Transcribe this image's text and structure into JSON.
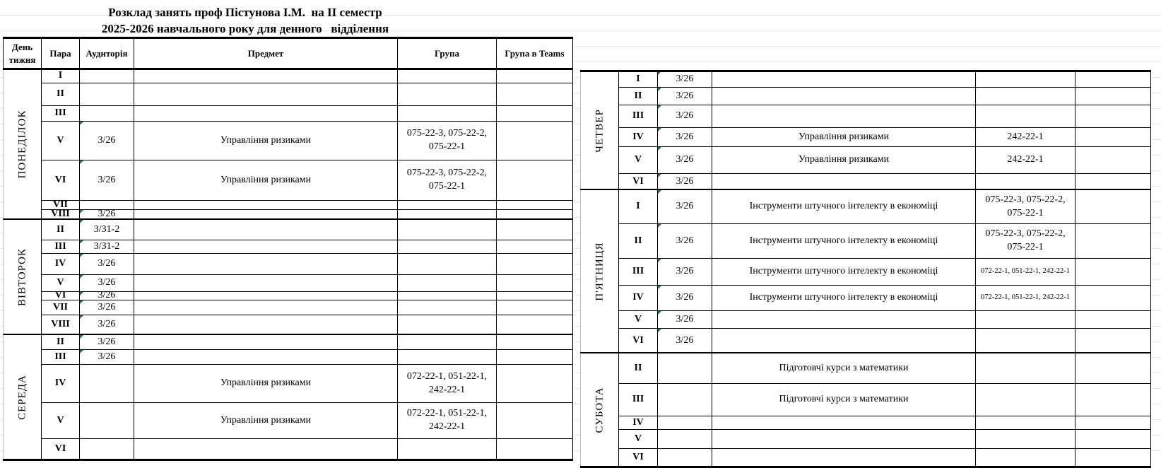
{
  "title_line1": "Розклад занять проф Пістунова І.М.  на ІІ семестр",
  "title_line2": "2025-2026 навчального року для денного   відділення",
  "headers": [
    "День тижня",
    "Пара",
    "Аудиторія",
    "Предмет",
    "Група",
    "Група в Teams"
  ],
  "left_days": [
    {
      "name": "ПОНЕДІЛОК",
      "rows": [
        {
          "para": "I",
          "room": "",
          "subject": "",
          "group": "",
          "teams": ""
        },
        {
          "para": "II",
          "room": "",
          "subject": "",
          "group": "",
          "teams": ""
        },
        {
          "para": "III",
          "room": "",
          "subject": "",
          "group": "",
          "teams": ""
        },
        {
          "para": "V",
          "room": "3/26",
          "subject": "Управління ризиками",
          "group": "075-22-3, 075-22-2, 075-22-1",
          "teams": ""
        },
        {
          "para": "VI",
          "room": "3/26",
          "subject": "Управління ризиками",
          "group": "075-22-3, 075-22-2, 075-22-1",
          "teams": ""
        },
        {
          "para": "VII",
          "room": "",
          "subject": "",
          "group": "",
          "teams": ""
        },
        {
          "para": "VIII",
          "room": "3/26",
          "subject": "",
          "group": "",
          "teams": ""
        }
      ]
    },
    {
      "name": "ВІВТОРОК",
      "rows": [
        {
          "para": "II",
          "room": "3/31-2",
          "subject": "",
          "group": "",
          "teams": ""
        },
        {
          "para": "III",
          "room": "3/31-2",
          "subject": "",
          "group": "",
          "teams": ""
        },
        {
          "para": "IV",
          "room": "3/26",
          "subject": "",
          "group": "",
          "teams": ""
        },
        {
          "para": "V",
          "room": "3/26",
          "subject": "",
          "group": "",
          "teams": ""
        },
        {
          "para": "VI",
          "room": "3/26",
          "subject": "",
          "group": "",
          "teams": ""
        },
        {
          "para": "VII",
          "room": "3/26",
          "subject": "",
          "group": "",
          "teams": ""
        },
        {
          "para": "VIII",
          "room": "3/26",
          "subject": "",
          "group": "",
          "teams": ""
        }
      ]
    },
    {
      "name": "СЕРЕДА",
      "rows": [
        {
          "para": "II",
          "room": "3/26",
          "subject": "",
          "group": "",
          "teams": ""
        },
        {
          "para": "III",
          "room": "3/26",
          "subject": "",
          "group": "",
          "teams": ""
        },
        {
          "para": "IV",
          "room": "",
          "subject": "Управління ризиками",
          "group": "072-22-1, 051-22-1, 242-22-1",
          "teams": ""
        },
        {
          "para": "V",
          "room": "",
          "subject": "Управління ризиками",
          "group": "072-22-1, 051-22-1, 242-22-1",
          "teams": ""
        },
        {
          "para": "VI",
          "room": "",
          "subject": "",
          "group": "",
          "teams": ""
        }
      ]
    }
  ],
  "right_days": [
    {
      "name": "ЧЕТВЕР",
      "rows": [
        {
          "para": "I",
          "room": "3/26",
          "subject": "",
          "group": "",
          "teams": ""
        },
        {
          "para": "II",
          "room": "3/26",
          "subject": "",
          "group": "",
          "teams": ""
        },
        {
          "para": "III",
          "room": "3/26",
          "subject": "",
          "group": "",
          "teams": ""
        },
        {
          "para": "IV",
          "room": "3/26",
          "subject": "Управління ризиками",
          "group": "242-22-1",
          "teams": ""
        },
        {
          "para": "V",
          "room": "3/26",
          "subject": "Управління ризиками",
          "group": "242-22-1",
          "teams": ""
        },
        {
          "para": "VI",
          "room": "3/26",
          "subject": "",
          "group": "",
          "teams": ""
        }
      ]
    },
    {
      "name": "П'ЯТНИЦЯ",
      "rows": [
        {
          "para": "I",
          "room": "3/26",
          "subject": "Інструменти штучного інтелекту в економіці",
          "group": "075-22-3, 075-22-2, 075-22-1",
          "teams": ""
        },
        {
          "para": "II",
          "room": "3/26",
          "subject": "Інструменти штучного інтелекту в економіці",
          "group": "075-22-3, 075-22-2, 075-22-1",
          "teams": ""
        },
        {
          "para": "III",
          "room": "3/26",
          "subject": "Інструменти штучного інтелекту в економіці",
          "group": "072-22-1, 051-22-1, 242-22-1",
          "teams": ""
        },
        {
          "para": "IV",
          "room": "3/26",
          "subject": "Інструменти штучного інтелекту в економіці",
          "group": "072-22-1, 051-22-1, 242-22-1",
          "teams": ""
        },
        {
          "para": "V",
          "room": "3/26",
          "subject": "",
          "group": "",
          "teams": ""
        },
        {
          "para": "VI",
          "room": "3/26",
          "subject": "",
          "group": "",
          "teams": ""
        }
      ]
    },
    {
      "name": "СУБОТА",
      "rows": [
        {
          "para": "II",
          "room": "",
          "subject": "Підготовчі курси з математики",
          "group": "",
          "teams": ""
        },
        {
          "para": "III",
          "room": "",
          "subject": "Підготовчі курси з математики",
          "group": "",
          "teams": ""
        },
        {
          "para": "IV",
          "room": "",
          "subject": "",
          "group": "",
          "teams": ""
        },
        {
          "para": "V",
          "room": "",
          "subject": "",
          "group": "",
          "teams": ""
        },
        {
          "para": "VI",
          "room": "",
          "subject": "",
          "group": "",
          "teams": ""
        }
      ]
    }
  ],
  "colors": {
    "comment_marker": "#1e7b34",
    "border": "#000000"
  }
}
